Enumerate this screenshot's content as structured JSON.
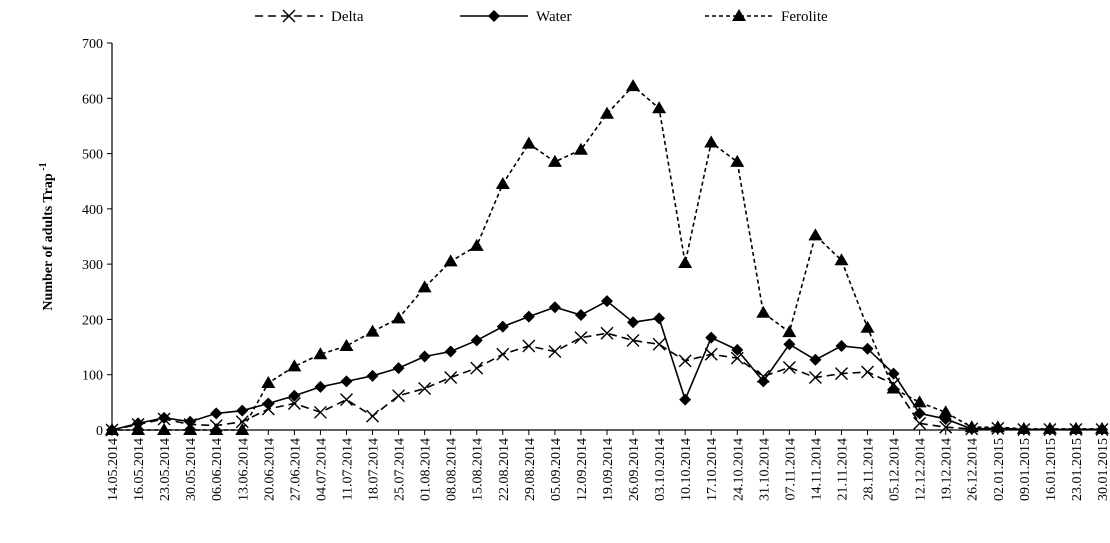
{
  "chart_data": {
    "type": "line",
    "title": "",
    "xlabel": "",
    "ylabel": "Number of adults Trap",
    "ylabel_superscript": "-1",
    "ylim": [
      0,
      700
    ],
    "yticks": [
      0,
      100,
      200,
      300,
      400,
      500,
      600,
      700
    ],
    "grid": false,
    "legend_position": "top-center",
    "categories": [
      "14.05.2014",
      "16.05.2014",
      "23.05.2014",
      "30.05.2014",
      "06.06.2014",
      "13.06.2014",
      "20.06.2014",
      "27.06.2014",
      "04.07.2014",
      "11.07.2014",
      "18.07.2014",
      "25.07.2014",
      "01.08.2014",
      "08.08.2014",
      "15.08.2014",
      "22.08.2014",
      "29.08.2014",
      "05.09.2014",
      "12.09.2014",
      "19.09.2014",
      "26.09.2014",
      "03.10.2014",
      "10.10.2014",
      "17.10.2014",
      "24.10.2014",
      "31.10.2014",
      "07.11.2014",
      "14.11.2014",
      "21.11.2014",
      "28.11.2014",
      "05.12.2014",
      "12.12.2014",
      "19.12.2014",
      "26.12.2014",
      "02.01.2015",
      "09.01.2015",
      "16.01.2015",
      "23.01.2015",
      "30.01.2015"
    ],
    "series": [
      {
        "name": "Delta",
        "marker": "x",
        "dash": "dashed",
        "values": [
          0,
          10,
          20,
          10,
          8,
          15,
          38,
          48,
          32,
          55,
          25,
          62,
          75,
          95,
          112,
          137,
          152,
          142,
          167,
          175,
          162,
          155,
          125,
          137,
          130,
          97,
          113,
          95,
          102,
          105,
          83,
          12,
          5,
          2,
          3,
          1,
          1,
          1,
          1
        ]
      },
      {
        "name": "Water",
        "marker": "diamond",
        "dash": "solid",
        "values": [
          0,
          12,
          22,
          15,
          30,
          35,
          48,
          62,
          78,
          88,
          98,
          112,
          133,
          142,
          162,
          187,
          205,
          222,
          208,
          233,
          195,
          202,
          55,
          167,
          145,
          88,
          155,
          127,
          152,
          147,
          102,
          30,
          20,
          2,
          3,
          1,
          1,
          1,
          1
        ]
      },
      {
        "name": "Ferolite",
        "marker": "triangle",
        "dash": "dotted",
        "values": [
          0,
          0,
          0,
          0,
          0,
          0,
          85,
          115,
          137,
          152,
          178,
          202,
          258,
          305,
          333,
          445,
          518,
          485,
          507,
          572,
          622,
          582,
          302,
          520,
          485,
          212,
          177,
          352,
          307,
          185,
          75,
          50,
          32,
          5,
          5,
          2,
          2,
          2,
          2
        ]
      }
    ],
    "colors": {
      "line": "#000000"
    }
  }
}
